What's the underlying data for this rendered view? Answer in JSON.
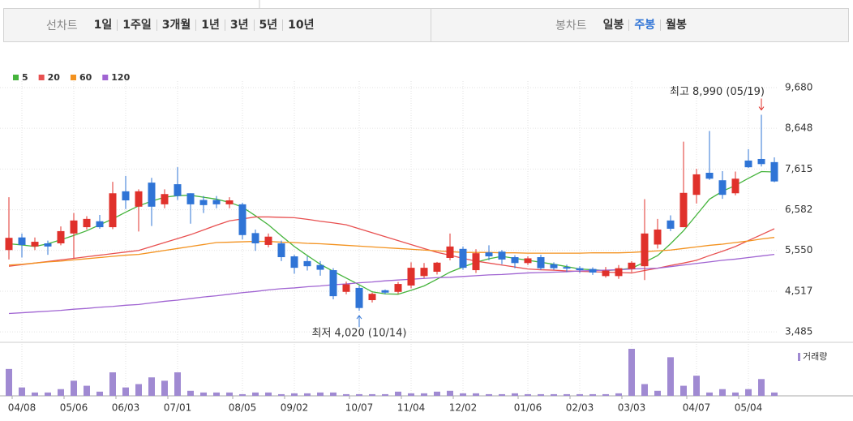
{
  "toolbar": {
    "line_chart": {
      "label": "선차트",
      "options": [
        "1일",
        "1주일",
        "3개월",
        "1년",
        "3년",
        "5년",
        "10년"
      ]
    },
    "candle_chart": {
      "label": "봉차트",
      "options": [
        "일봉",
        "주봉",
        "월봉"
      ],
      "active": 1
    }
  },
  "chart_data": {
    "type": "candlestick",
    "categories": [
      null,
      "04/08",
      null,
      null,
      null,
      "05/06",
      null,
      null,
      null,
      "06/03",
      null,
      null,
      null,
      "07/01",
      null,
      null,
      null,
      null,
      "08/05",
      null,
      null,
      null,
      "09/02",
      null,
      null,
      null,
      null,
      "10/07",
      null,
      null,
      null,
      "11/04",
      null,
      null,
      null,
      "12/02",
      null,
      null,
      null,
      null,
      "01/06",
      null,
      null,
      null,
      "02/03",
      null,
      null,
      null,
      "03/03",
      null,
      null,
      null,
      null,
      "04/07",
      null,
      null,
      null,
      "05/04",
      null,
      null
    ],
    "open": [
      5560,
      5880,
      5650,
      5730,
      5730,
      5980,
      6140,
      6290,
      6140,
      7050,
      6660,
      7270,
      6720,
      7230,
      7000,
      6830,
      6830,
      6720,
      6720,
      5990,
      5690,
      5730,
      5400,
      5280,
      5180,
      5050,
      4500,
      4600,
      4290,
      4540,
      4500,
      4660,
      4900,
      5010,
      5360,
      5590,
      5050,
      5500,
      5520,
      5380,
      5230,
      5380,
      5200,
      5130,
      5100,
      5080,
      4900,
      4900,
      5080,
      5150,
      5700,
      6310,
      6140,
      6960,
      7520,
      7330,
      7000,
      7830,
      7870,
      7790
    ],
    "high": [
      6900,
      5980,
      5880,
      5800,
      6160,
      6500,
      6420,
      6450,
      7290,
      7440,
      7100,
      7390,
      7100,
      7660,
      7000,
      6930,
      6930,
      6900,
      6760,
      6080,
      5980,
      5800,
      5440,
      5400,
      5280,
      5100,
      4760,
      4660,
      4480,
      4560,
      4750,
      5250,
      5230,
      5260,
      5980,
      5650,
      5580,
      5680,
      5560,
      5430,
      5400,
      5440,
      5250,
      5190,
      5150,
      5120,
      5130,
      5180,
      5280,
      6850,
      6350,
      6440,
      8310,
      7620,
      8580,
      7560,
      7550,
      8120,
      8990,
      7910
    ],
    "low": [
      5320,
      5370,
      5560,
      5440,
      5680,
      5360,
      6080,
      6100,
      6090,
      6600,
      6030,
      6170,
      6620,
      6830,
      6230,
      6500,
      6620,
      6620,
      5830,
      5540,
      5630,
      5280,
      4960,
      5040,
      4910,
      4310,
      4440,
      4020,
      4230,
      4440,
      4450,
      4590,
      4850,
      4940,
      5300,
      5060,
      4980,
      5300,
      5200,
      5100,
      5180,
      5060,
      5060,
      5000,
      4980,
      4930,
      4860,
      4830,
      5000,
      4800,
      5600,
      6040,
      6140,
      6740,
      7340,
      6860,
      6950,
      7640,
      7680,
      7280
    ],
    "close": [
      5870,
      5690,
      5770,
      5650,
      6040,
      6310,
      6350,
      6140,
      7000,
      6820,
      7050,
      6660,
      6980,
      6930,
      6720,
      6700,
      6720,
      6820,
      5940,
      5730,
      5900,
      5380,
      5110,
      5150,
      5060,
      4390,
      4690,
      4090,
      4450,
      4480,
      4700,
      5110,
      5110,
      5240,
      5650,
      5110,
      5480,
      5400,
      5320,
      5230,
      5350,
      5100,
      5100,
      5090,
      5050,
      4990,
      5040,
      5100,
      5240,
      5980,
      6080,
      6100,
      7010,
      7480,
      7370,
      6960,
      7370,
      7660,
      7740,
      7300
    ],
    "up_color": "#e0312b",
    "down_color": "#2f74d6",
    "moving_averages": [
      {
        "name": "5",
        "color": "#45b43c",
        "values": [
          5720,
          5690,
          5650,
          5720,
          5820,
          5930,
          6050,
          6200,
          6350,
          6520,
          6680,
          6800,
          6900,
          6940,
          6950,
          6900,
          6850,
          6770,
          6650,
          6430,
          6200,
          5920,
          5650,
          5420,
          5200,
          5020,
          4850,
          4680,
          4500,
          4450,
          4440,
          4540,
          4650,
          4820,
          5000,
          5130,
          5250,
          5340,
          5400,
          5350,
          5300,
          5250,
          5200,
          5140,
          5080,
          5060,
          5040,
          5060,
          5100,
          5250,
          5420,
          5720,
          6050,
          6450,
          6850,
          7050,
          7200,
          7380,
          7550,
          7540
        ]
      },
      {
        "name": "20",
        "color": "#e85050",
        "values": [
          5150,
          5190,
          5230,
          5270,
          5310,
          5350,
          5390,
          5430,
          5470,
          5510,
          5550,
          5650,
          5750,
          5850,
          5950,
          6070,
          6190,
          6300,
          6350,
          6400,
          6400,
          6390,
          6380,
          6340,
          6290,
          6250,
          6200,
          6100,
          6000,
          5900,
          5800,
          5700,
          5600,
          5500,
          5430,
          5350,
          5280,
          5230,
          5180,
          5130,
          5080,
          5060,
          5050,
          5030,
          5020,
          5010,
          5000,
          4990,
          4980,
          5040,
          5100,
          5170,
          5230,
          5300,
          5420,
          5530,
          5650,
          5800,
          5950,
          6100
        ]
      },
      {
        "name": "60",
        "color": "#f3921f",
        "values": [
          5180,
          5200,
          5230,
          5260,
          5280,
          5310,
          5340,
          5370,
          5400,
          5430,
          5450,
          5500,
          5550,
          5600,
          5650,
          5700,
          5750,
          5760,
          5770,
          5780,
          5780,
          5760,
          5750,
          5730,
          5720,
          5700,
          5680,
          5660,
          5640,
          5620,
          5600,
          5580,
          5560,
          5540,
          5520,
          5500,
          5500,
          5500,
          5490,
          5490,
          5480,
          5480,
          5480,
          5480,
          5480,
          5490,
          5490,
          5490,
          5500,
          5520,
          5540,
          5560,
          5600,
          5640,
          5680,
          5710,
          5750,
          5790,
          5840,
          5880
        ]
      },
      {
        "name": "120",
        "color": "#a064d2",
        "values": [
          3950,
          3970,
          3990,
          4010,
          4030,
          4060,
          4080,
          4110,
          4130,
          4160,
          4180,
          4220,
          4260,
          4290,
          4330,
          4370,
          4400,
          4440,
          4480,
          4510,
          4550,
          4580,
          4600,
          4630,
          4650,
          4680,
          4700,
          4730,
          4750,
          4780,
          4800,
          4820,
          4840,
          4860,
          4870,
          4890,
          4910,
          4930,
          4940,
          4960,
          4980,
          4990,
          5000,
          5010,
          5030,
          5040,
          5050,
          5060,
          5080,
          5090,
          5100,
          5140,
          5180,
          5220,
          5260,
          5300,
          5330,
          5370,
          5410,
          5450
        ]
      }
    ],
    "volume": {
      "name": "거래량",
      "color": "#a08ad2",
      "values": [
        32,
        10,
        4,
        4,
        8,
        18,
        12,
        5,
        28,
        10,
        14,
        22,
        18,
        28,
        6,
        4,
        4,
        4,
        2,
        4,
        4,
        2,
        3,
        3,
        4,
        4,
        2,
        2,
        2,
        2,
        5,
        3,
        3,
        5,
        6,
        3,
        3,
        2,
        2,
        3,
        2,
        2,
        2,
        2,
        2,
        2,
        2,
        3,
        56,
        14,
        6,
        46,
        12,
        24,
        4,
        8,
        4,
        8,
        20,
        4
      ]
    },
    "ylim": [
      3220,
      9680
    ],
    "yticks": [
      {
        "value": 9680,
        "label": "9,680"
      },
      {
        "value": 8648,
        "label": "8,648"
      },
      {
        "value": 7615,
        "label": "7,615"
      },
      {
        "value": 6582,
        "label": "6,582"
      },
      {
        "value": 5550,
        "label": "5,550"
      },
      {
        "value": 4517,
        "label": "4,517"
      },
      {
        "value": 3485,
        "label": "3,485"
      }
    ],
    "grid": true,
    "annotations": [
      {
        "text": "최고 8,990 (05/19)",
        "color": "#e0312b"
      },
      {
        "text": "최저 4,020 (10/14)",
        "color": "#2f74d6"
      }
    ]
  }
}
